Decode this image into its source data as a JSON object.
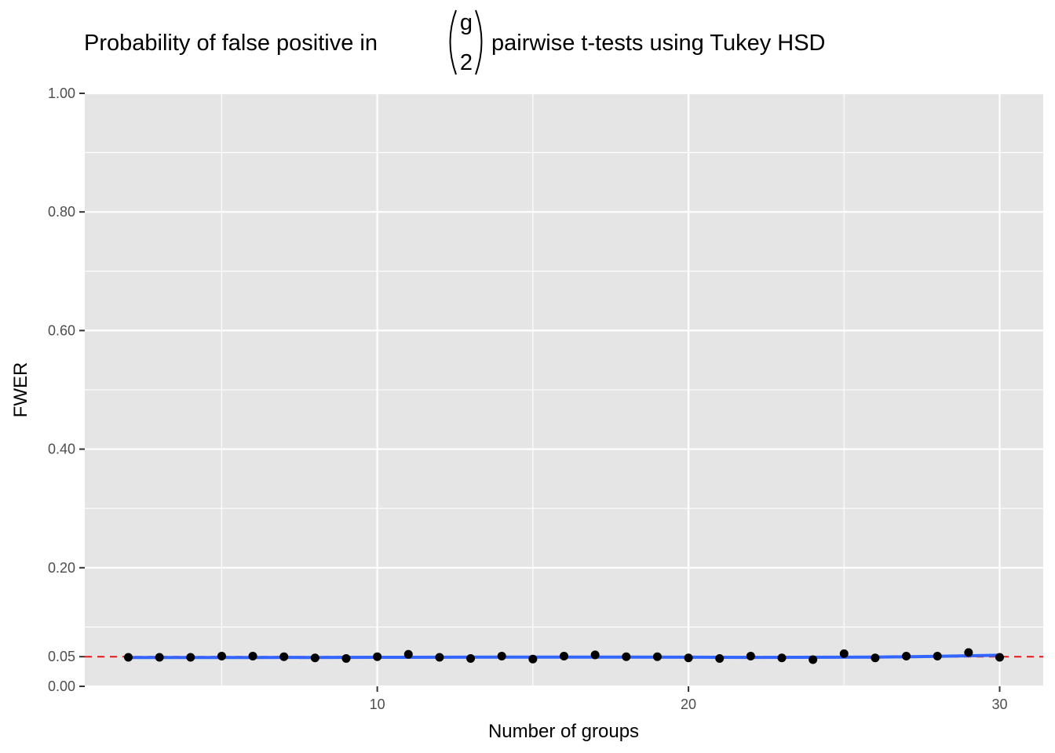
{
  "chart_data": {
    "type": "scatter",
    "title_prefix": "Probability of false positive in",
    "title_binom_top": "g",
    "title_binom_bottom": "2",
    "title_suffix": "pairwise t-tests using Tukey HSD",
    "xlabel": "Number of groups",
    "ylabel": "FWER",
    "xlim": [
      0.6,
      31.4
    ],
    "ylim": [
      0,
      1
    ],
    "x_ticks": [
      10,
      20,
      30
    ],
    "x_minor_ticks": [
      5,
      15,
      25
    ],
    "y_ticks": [
      0.0,
      0.05,
      0.2,
      0.4,
      0.6,
      0.8,
      1.0
    ],
    "y_tick_labels": [
      "0.00",
      "0.05",
      "0.20",
      "0.40",
      "0.60",
      "0.80",
      "1.00"
    ],
    "y_grid_major": [
      0.0,
      0.2,
      0.4,
      0.6,
      0.8,
      1.0
    ],
    "y_grid_minor": [
      0.1,
      0.3,
      0.5,
      0.7,
      0.9
    ],
    "reference_line": {
      "y": 0.05,
      "style": "dashed",
      "color": "#e41a1c"
    },
    "points": {
      "color": "#000000",
      "x": [
        2,
        3,
        4,
        5,
        6,
        7,
        8,
        9,
        10,
        11,
        12,
        13,
        14,
        15,
        16,
        17,
        18,
        19,
        20,
        21,
        22,
        23,
        24,
        25,
        26,
        27,
        28,
        29,
        30
      ],
      "y": [
        0.049,
        0.049,
        0.049,
        0.051,
        0.051,
        0.05,
        0.048,
        0.047,
        0.05,
        0.054,
        0.049,
        0.047,
        0.051,
        0.046,
        0.051,
        0.053,
        0.05,
        0.05,
        0.048,
        0.047,
        0.051,
        0.048,
        0.045,
        0.055,
        0.048,
        0.051,
        0.051,
        0.057,
        0.049
      ]
    },
    "trend_line": {
      "color": "#3366ff",
      "x": [
        2,
        6,
        10,
        14,
        18,
        22,
        26,
        28,
        30
      ],
      "y": [
        0.0485,
        0.0486,
        0.0489,
        0.0494,
        0.0494,
        0.0488,
        0.0492,
        0.0505,
        0.0525
      ]
    },
    "colors": {
      "panel_background": "#e5e5e5",
      "grid": "#ffffff",
      "tick": "#333333"
    }
  }
}
